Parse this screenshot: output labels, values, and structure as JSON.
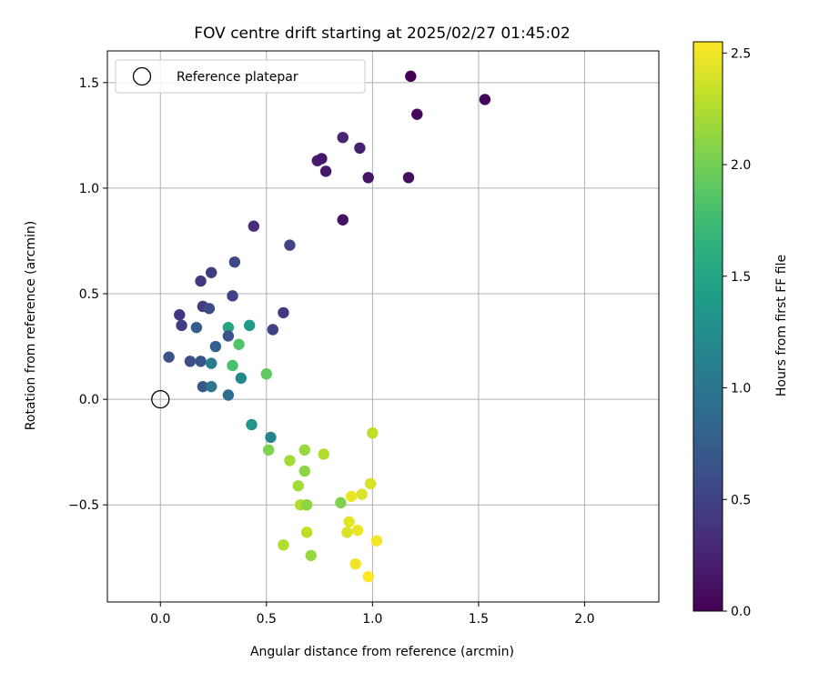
{
  "chart_data": {
    "type": "scatter",
    "title": "FOV centre drift starting at 2025/02/27 01:45:02",
    "xlabel": "Angular distance from reference (arcmin)",
    "ylabel": "Rotation from reference (arcmin)",
    "xlim": [
      -0.25,
      2.35
    ],
    "ylim": [
      -0.96,
      1.65
    ],
    "xticks": [
      0.0,
      0.5,
      1.0,
      1.5,
      2.0
    ],
    "xtick_labels": [
      "0.0",
      "0.5",
      "1.0",
      "1.5",
      "2.0"
    ],
    "yticks": [
      -0.5,
      0.0,
      0.5,
      1.0,
      1.5
    ],
    "ytick_labels": [
      "−0.5",
      "0.0",
      "0.5",
      "1.0",
      "1.5"
    ],
    "grid": true,
    "colormap": "viridis",
    "colorbar": {
      "label": "Hours from first FF file",
      "range": [
        0.0,
        2.55
      ],
      "ticks": [
        0.0,
        0.5,
        1.0,
        1.5,
        2.0,
        2.5
      ],
      "tick_labels": [
        "0.0",
        "0.5",
        "1.0",
        "1.5",
        "2.0",
        "2.5"
      ]
    },
    "legend": {
      "placement": "top-left",
      "label": "Reference platepar"
    },
    "reference_point": {
      "x": 0.0,
      "y": 0.0
    },
    "points": [
      {
        "x": 1.18,
        "y": 1.53,
        "c": 0.0
      },
      {
        "x": 1.53,
        "y": 1.42,
        "c": 0.03
      },
      {
        "x": 1.21,
        "y": 1.35,
        "c": 0.05
      },
      {
        "x": 0.86,
        "y": 1.24,
        "c": 0.26
      },
      {
        "x": 0.94,
        "y": 1.19,
        "c": 0.23
      },
      {
        "x": 0.74,
        "y": 1.13,
        "c": 0.18
      },
      {
        "x": 0.76,
        "y": 1.14,
        "c": 0.16
      },
      {
        "x": 0.78,
        "y": 1.08,
        "c": 0.19
      },
      {
        "x": 0.98,
        "y": 1.05,
        "c": 0.14
      },
      {
        "x": 1.17,
        "y": 1.05,
        "c": 0.1
      },
      {
        "x": 0.86,
        "y": 0.85,
        "c": 0.12
      },
      {
        "x": 0.44,
        "y": 0.82,
        "c": 0.32
      },
      {
        "x": 0.61,
        "y": 0.73,
        "c": 0.52
      },
      {
        "x": 0.35,
        "y": 0.65,
        "c": 0.55
      },
      {
        "x": 0.24,
        "y": 0.6,
        "c": 0.45
      },
      {
        "x": 0.19,
        "y": 0.56,
        "c": 0.4
      },
      {
        "x": 0.34,
        "y": 0.49,
        "c": 0.5
      },
      {
        "x": 0.2,
        "y": 0.44,
        "c": 0.45
      },
      {
        "x": 0.23,
        "y": 0.43,
        "c": 0.58
      },
      {
        "x": 0.58,
        "y": 0.41,
        "c": 0.42
      },
      {
        "x": 0.09,
        "y": 0.4,
        "c": 0.4
      },
      {
        "x": 0.1,
        "y": 0.35,
        "c": 0.45
      },
      {
        "x": 0.17,
        "y": 0.34,
        "c": 0.75
      },
      {
        "x": 0.53,
        "y": 0.33,
        "c": 0.5
      },
      {
        "x": 0.32,
        "y": 0.34,
        "c": 1.5
      },
      {
        "x": 0.42,
        "y": 0.35,
        "c": 1.4
      },
      {
        "x": 0.32,
        "y": 0.3,
        "c": 0.65
      },
      {
        "x": 0.37,
        "y": 0.26,
        "c": 1.85
      },
      {
        "x": 0.26,
        "y": 0.25,
        "c": 0.78
      },
      {
        "x": 0.04,
        "y": 0.2,
        "c": 0.62
      },
      {
        "x": 0.14,
        "y": 0.18,
        "c": 0.6
      },
      {
        "x": 0.19,
        "y": 0.18,
        "c": 0.68
      },
      {
        "x": 0.24,
        "y": 0.17,
        "c": 1.1
      },
      {
        "x": 0.34,
        "y": 0.16,
        "c": 1.8
      },
      {
        "x": 0.5,
        "y": 0.12,
        "c": 1.9
      },
      {
        "x": 0.38,
        "y": 0.1,
        "c": 1.2
      },
      {
        "x": 0.2,
        "y": 0.06,
        "c": 0.7
      },
      {
        "x": 0.24,
        "y": 0.06,
        "c": 1.0
      },
      {
        "x": 0.32,
        "y": 0.02,
        "c": 0.9
      },
      {
        "x": 0.43,
        "y": -0.12,
        "c": 1.35
      },
      {
        "x": 0.52,
        "y": -0.18,
        "c": 1.15
      },
      {
        "x": 1.0,
        "y": -0.16,
        "c": 2.3
      },
      {
        "x": 0.51,
        "y": -0.24,
        "c": 2.05
      },
      {
        "x": 0.68,
        "y": -0.24,
        "c": 2.15
      },
      {
        "x": 0.77,
        "y": -0.26,
        "c": 2.25
      },
      {
        "x": 0.61,
        "y": -0.29,
        "c": 2.2
      },
      {
        "x": 0.68,
        "y": -0.34,
        "c": 2.1
      },
      {
        "x": 0.65,
        "y": -0.41,
        "c": 2.2
      },
      {
        "x": 0.99,
        "y": -0.4,
        "c": 2.4
      },
      {
        "x": 0.95,
        "y": -0.45,
        "c": 2.42
      },
      {
        "x": 0.9,
        "y": -0.46,
        "c": 2.48
      },
      {
        "x": 0.85,
        "y": -0.49,
        "c": 2.05
      },
      {
        "x": 0.66,
        "y": -0.5,
        "c": 2.25
      },
      {
        "x": 0.69,
        "y": -0.5,
        "c": 2.1
      },
      {
        "x": 0.89,
        "y": -0.58,
        "c": 2.45
      },
      {
        "x": 0.93,
        "y": -0.62,
        "c": 2.48
      },
      {
        "x": 0.88,
        "y": -0.63,
        "c": 2.4
      },
      {
        "x": 0.69,
        "y": -0.63,
        "c": 2.3
      },
      {
        "x": 1.02,
        "y": -0.67,
        "c": 2.52
      },
      {
        "x": 0.58,
        "y": -0.69,
        "c": 2.25
      },
      {
        "x": 0.71,
        "y": -0.74,
        "c": 2.15
      },
      {
        "x": 0.92,
        "y": -0.78,
        "c": 2.5
      },
      {
        "x": 0.98,
        "y": -0.84,
        "c": 2.55
      }
    ]
  }
}
